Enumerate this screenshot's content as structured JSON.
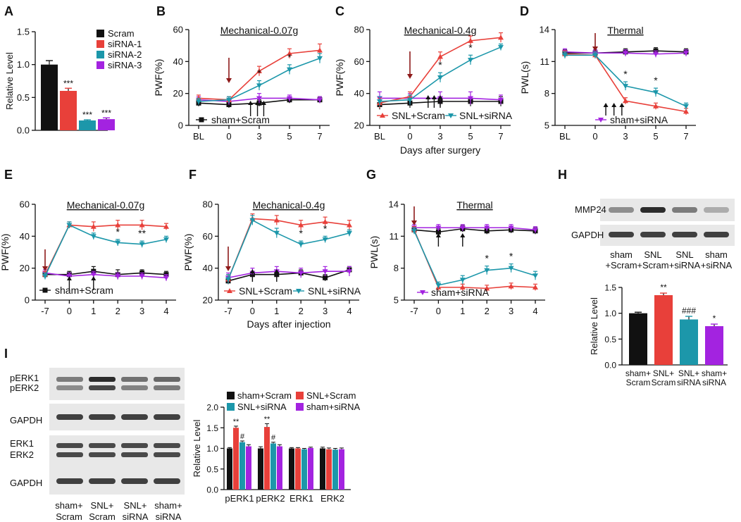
{
  "colors": {
    "black": "#111111",
    "red": "#e8403a",
    "cyan": "#1c97aa",
    "purple": "#a323e0",
    "arrow_red": "#8e1a1a"
  },
  "chart_data": [
    {
      "panel": "A",
      "type": "bar",
      "title": "",
      "ylabel": "Relative Level",
      "ylim": [
        0,
        1.5
      ],
      "ticks": [
        "0.0",
        "0.5",
        "1.0",
        "1.5"
      ],
      "categories": [
        "Scram",
        "siRNA-1",
        "siRNA-2",
        "siRNA-3"
      ],
      "values": [
        1.0,
        0.6,
        0.15,
        0.17
      ],
      "errors": [
        0.06,
        0.04,
        0.01,
        0.02
      ],
      "sig": [
        "",
        "***",
        "***",
        "***"
      ],
      "legend": [
        "Scram",
        "siRNA-1",
        "siRNA-2",
        "siRNA-3"
      ]
    },
    {
      "panel": "B",
      "type": "line",
      "title": "Mechanical-0.07g",
      "ylabel": "PWF(%)",
      "ylim": [
        0,
        60
      ],
      "yticks": [
        "0",
        "20",
        "40",
        "60"
      ],
      "xticks": [
        "BL",
        "0",
        "3",
        "5",
        "7"
      ],
      "series": [
        {
          "name": "sham+Scram",
          "color": "black",
          "values": [
            14,
            13,
            14,
            16,
            16
          ],
          "errors": [
            2,
            2,
            2,
            2,
            2
          ]
        },
        {
          "name": "sham+siRNA",
          "color": "purple",
          "values": [
            16,
            15,
            17,
            17,
            16
          ],
          "errors": [
            2,
            2,
            3,
            2,
            2
          ]
        },
        {
          "name": "SNL+Scram",
          "color": "red",
          "values": [
            17,
            16,
            34,
            45,
            47
          ],
          "errors": [
            2,
            2,
            3,
            3,
            4
          ]
        },
        {
          "name": "SNL+siRNA",
          "color": "cyan",
          "values": [
            15,
            16,
            25,
            35,
            42
          ],
          "errors": [
            2,
            2,
            3,
            3,
            3
          ]
        }
      ],
      "stars": [
        "",
        "",
        "*",
        "*",
        ""
      ],
      "legend_text": "sham+Scram",
      "xlabel": ""
    },
    {
      "panel": "C",
      "type": "line",
      "title": "Mechanical-0.4g",
      "ylabel": "PWF(%)",
      "ylim": [
        20,
        80
      ],
      "yticks": [
        "20",
        "40",
        "60",
        "80"
      ],
      "xticks": [
        "BL",
        "0",
        "3",
        "5",
        "7"
      ],
      "series": [
        {
          "name": "sham+Scram",
          "color": "black",
          "values": [
            33,
            34,
            35,
            35,
            35
          ],
          "errors": [
            3,
            3,
            3,
            3,
            3
          ]
        },
        {
          "name": "sham+siRNA",
          "color": "purple",
          "values": [
            37,
            37,
            37,
            37,
            36
          ],
          "errors": [
            4,
            3,
            4,
            4,
            3
          ]
        },
        {
          "name": "SNL+Scram",
          "color": "red",
          "values": [
            34,
            38,
            63,
            73,
            75
          ],
          "errors": [
            3,
            3,
            3,
            3,
            3
          ]
        },
        {
          "name": "SNL+siRNA",
          "color": "cyan",
          "values": [
            35,
            36,
            50,
            61,
            69
          ],
          "errors": [
            3,
            3,
            3,
            3,
            2
          ]
        }
      ],
      "stars": [
        "",
        "",
        "*",
        "*",
        ""
      ],
      "legend_a": "SNL+Scram",
      "legend_b": "SNL+siRNA",
      "xlabel": "Days after surgery"
    },
    {
      "panel": "D",
      "type": "line",
      "title": "Thermal",
      "ylabel": "PWL(s)",
      "ylim": [
        5,
        14
      ],
      "yticks": [
        "5",
        "8",
        "11",
        "14"
      ],
      "xticks": [
        "BL",
        "0",
        "3",
        "5",
        "7"
      ],
      "series": [
        {
          "name": "sham+Scram",
          "color": "black",
          "values": [
            11.8,
            11.8,
            11.9,
            12.0,
            11.9
          ],
          "errors": [
            0.3,
            0.3,
            0.3,
            0.3,
            0.3
          ]
        },
        {
          "name": "sham+siRNA",
          "color": "purple",
          "values": [
            11.9,
            11.8,
            11.8,
            11.7,
            11.8
          ],
          "errors": [
            0.3,
            0.3,
            0.3,
            0.3,
            0.3
          ]
        },
        {
          "name": "SNL+Scram",
          "color": "red",
          "values": [
            11.7,
            11.6,
            7.3,
            6.8,
            6.3
          ],
          "errors": [
            0.3,
            0.3,
            0.3,
            0.3,
            0.3
          ]
        },
        {
          "name": "SNL+siRNA",
          "color": "cyan",
          "values": [
            11.6,
            11.6,
            8.7,
            8.1,
            6.8
          ],
          "errors": [
            0.3,
            0.3,
            0.4,
            0.4,
            0.3
          ]
        }
      ],
      "stars": [
        "",
        "",
        "*",
        "*",
        ""
      ],
      "legend_text": "sham+siRNA",
      "xlabel": ""
    },
    {
      "panel": "E",
      "type": "line",
      "title": "Mechanical-0.07g",
      "ylabel": "PWF(%)",
      "ylim": [
        0,
        60
      ],
      "yticks": [
        "0",
        "20",
        "40",
        "60"
      ],
      "xticks": [
        "-7",
        "0",
        "1",
        "2",
        "3",
        "4"
      ],
      "series": [
        {
          "name": "sham+Scram",
          "color": "black",
          "values": [
            16,
            16,
            18,
            16,
            17,
            16
          ],
          "errors": [
            2,
            2,
            3,
            3,
            2,
            2
          ]
        },
        {
          "name": "sham+siRNA",
          "color": "purple",
          "values": [
            17,
            15,
            16,
            15,
            15,
            14
          ],
          "errors": [
            2,
            2,
            2,
            2,
            2,
            2
          ]
        },
        {
          "name": "SNL+Scram",
          "color": "red",
          "values": [
            16,
            47,
            46,
            47,
            47,
            46
          ],
          "errors": [
            2,
            2,
            3,
            3,
            3,
            2
          ]
        },
        {
          "name": "SNL+siRNA",
          "color": "cyan",
          "values": [
            15,
            47,
            40,
            36,
            35,
            38
          ],
          "errors": [
            2,
            2,
            2,
            2,
            2,
            2
          ]
        }
      ],
      "stars": [
        "",
        "",
        "",
        "*",
        "**",
        ""
      ],
      "legend_text": "sham+Scram",
      "xlabel": ""
    },
    {
      "panel": "F",
      "type": "line",
      "title": "Mechanical-0.4g",
      "ylabel": "PWF(%)",
      "ylim": [
        20,
        80
      ],
      "yticks": [
        "20",
        "40",
        "60",
        "80"
      ],
      "xticks": [
        "-7",
        "0",
        "1",
        "2",
        "3",
        "4"
      ],
      "series": [
        {
          "name": "sham+Scram",
          "color": "black",
          "values": [
            32,
            36,
            36,
            37,
            34,
            39
          ],
          "errors": [
            2,
            2,
            2,
            2,
            2,
            2
          ]
        },
        {
          "name": "sham+siRNA",
          "color": "purple",
          "values": [
            34,
            37,
            38,
            37,
            38,
            38
          ],
          "errors": [
            3,
            3,
            3,
            3,
            3,
            3
          ]
        },
        {
          "name": "SNL+Scram",
          "color": "red",
          "values": [
            33,
            71,
            70,
            67,
            69,
            67
          ],
          "errors": [
            3,
            3,
            3,
            3,
            3,
            3
          ]
        },
        {
          "name": "SNL+siRNA",
          "color": "cyan",
          "values": [
            33,
            70,
            62,
            55,
            58,
            62
          ],
          "errors": [
            3,
            3,
            3,
            2,
            2,
            2
          ]
        }
      ],
      "stars": [
        "",
        "",
        "",
        "*",
        "*",
        ""
      ],
      "legend_a": "SNL+Scram",
      "legend_b": "SNL+siRNA",
      "xlabel": "Days after injection"
    },
    {
      "panel": "G",
      "type": "line",
      "title": "Thermal",
      "ylabel": "PWL(s)",
      "ylim": [
        5,
        14
      ],
      "yticks": [
        "5",
        "8",
        "11",
        "14"
      ],
      "xticks": [
        "-7",
        "0",
        "1",
        "2",
        "3",
        "4"
      ],
      "series": [
        {
          "name": "sham+Scram",
          "color": "black",
          "values": [
            11.6,
            11.4,
            11.7,
            11.5,
            11.6,
            11.5
          ],
          "errors": [
            0.3,
            0.3,
            0.3,
            0.3,
            0.3,
            0.3
          ]
        },
        {
          "name": "sham+siRNA",
          "color": "purple",
          "values": [
            11.8,
            11.8,
            11.8,
            11.8,
            11.8,
            11.6
          ],
          "errors": [
            0.3,
            0.3,
            0.3,
            0.3,
            0.3,
            0.3
          ]
        },
        {
          "name": "SNL+Scram",
          "color": "red",
          "values": [
            11.6,
            6.2,
            6.2,
            6.1,
            6.3,
            6.2
          ],
          "errors": [
            0.3,
            0.3,
            0.3,
            0.3,
            0.3,
            0.3
          ]
        },
        {
          "name": "SNL+siRNA",
          "color": "cyan",
          "values": [
            11.5,
            6.4,
            6.9,
            7.8,
            8.0,
            7.3
          ],
          "errors": [
            0.3,
            0.3,
            0.4,
            0.4,
            0.4,
            0.4
          ]
        }
      ],
      "stars": [
        "",
        "",
        "",
        "*",
        "*",
        ""
      ],
      "legend_text": "sham+siRNA",
      "xlabel": ""
    },
    {
      "panel": "H",
      "type": "bar",
      "ylabel": "Relative Level",
      "ylim": [
        0,
        1.5
      ],
      "ticks": [
        "0.0",
        "0.5",
        "1.0",
        "1.5"
      ],
      "categories": [
        [
          "sham",
          "+Scram"
        ],
        [
          "SNL",
          "+Scram"
        ],
        [
          "SNL",
          "+siRNA"
        ],
        [
          "sham",
          "+siRNA"
        ]
      ],
      "bar_labels": [
        [
          "sham+",
          "Scram"
        ],
        [
          "SNL+",
          "Scram"
        ],
        [
          "SNL+",
          "siRNA"
        ],
        [
          "sham+",
          "siRNA"
        ]
      ],
      "values": [
        1.0,
        1.35,
        0.88,
        0.75
      ],
      "errors": [
        0.02,
        0.04,
        0.06,
        0.04
      ],
      "colors": [
        "black",
        "red",
        "cyan",
        "purple"
      ],
      "sig": [
        "",
        "**",
        "###",
        "*"
      ],
      "blot_labels": [
        "MMP24",
        "GAPDH"
      ]
    },
    {
      "panel": "I",
      "type": "bar",
      "ylabel": "Relative Level",
      "ylim": [
        0,
        2.0
      ],
      "ticks": [
        "0.0",
        "0.5",
        "1.0",
        "1.5",
        "2.0"
      ],
      "categories": [
        "pERK1",
        "pERK2",
        "ERK1",
        "ERK2"
      ],
      "series": [
        {
          "name": "sham+Scram",
          "color": "black",
          "values": [
            1.0,
            1.0,
            1.0,
            1.0
          ],
          "errors": [
            0.02,
            0.04,
            0.02,
            0.03
          ]
        },
        {
          "name": "SNL+Scram",
          "color": "red",
          "values": [
            1.5,
            1.52,
            1.0,
            0.98
          ],
          "errors": [
            0.04,
            0.08,
            0.02,
            0.03
          ]
        },
        {
          "name": "SNL+siRNA",
          "color": "cyan",
          "values": [
            1.15,
            1.12,
            0.98,
            0.97
          ],
          "errors": [
            0.03,
            0.03,
            0.02,
            0.03
          ]
        },
        {
          "name": "sham+siRNA",
          "color": "purple",
          "values": [
            1.05,
            1.05,
            1.01,
            0.98
          ],
          "errors": [
            0.04,
            0.04,
            0.02,
            0.03
          ]
        }
      ],
      "sig": [
        [
          "",
          "**",
          "#",
          ""
        ],
        [
          "",
          "**",
          "#",
          ""
        ],
        [
          "",
          "",
          "",
          ""
        ],
        [
          "",
          "",
          "",
          ""
        ]
      ],
      "blot_labels": [
        "pERK1",
        "pERK2",
        "GAPDH",
        "ERK1",
        "ERK2",
        "GAPDH"
      ],
      "lane_labels": [
        [
          "sham+",
          "Scram"
        ],
        [
          "SNL+",
          "Scram"
        ],
        [
          "SNL+",
          "siRNA"
        ],
        [
          "sham+",
          "siRNA"
        ]
      ]
    }
  ]
}
